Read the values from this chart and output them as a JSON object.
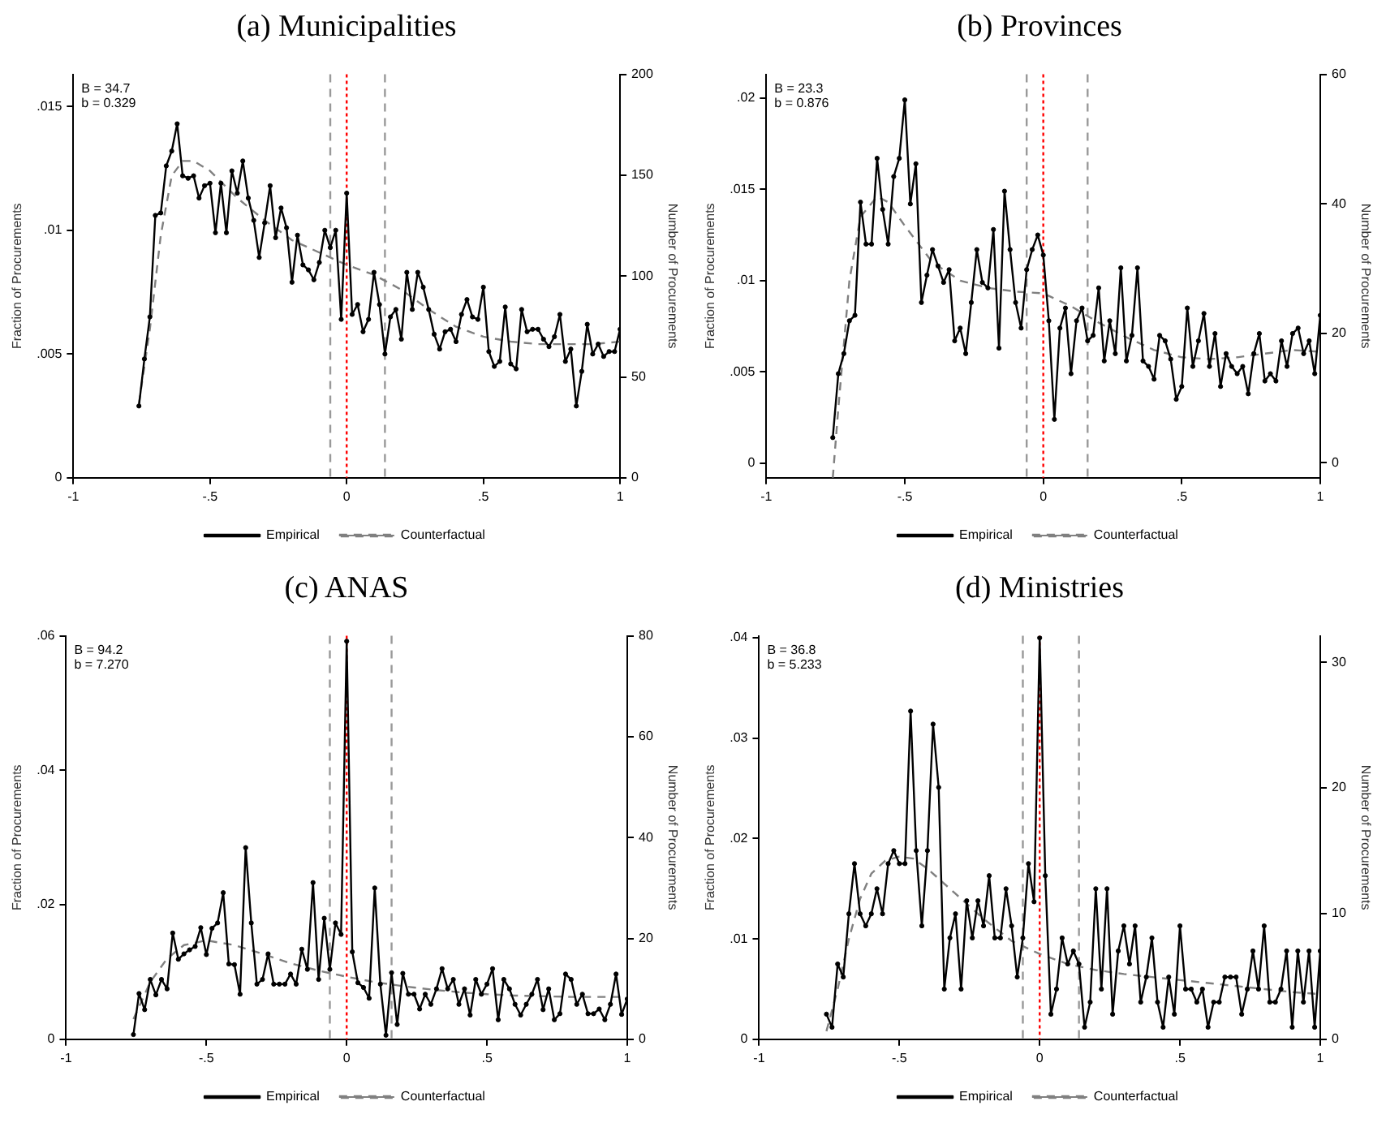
{
  "chart_data": [
    {
      "type": "line",
      "title": "(a) Municipalities",
      "ylabel": "Fraction of Procurements",
      "y2label": "Number of Procurements",
      "legend": "bottom",
      "xlim": [
        -1,
        1
      ],
      "xticks": [
        {
          "value": -1,
          "label": "-1"
        },
        {
          "value": -0.5,
          "label": "-.5"
        },
        {
          "value": 0,
          "label": "0"
        },
        {
          "value": 0.5,
          "label": ".5"
        },
        {
          "value": 1,
          "label": "1"
        }
      ],
      "ylim": [
        0,
        0.0163
      ],
      "yticks": [
        {
          "value": 0,
          "label": "0"
        },
        {
          "value": 0.005,
          "label": ".005"
        },
        {
          "value": 0.01,
          "label": ".01"
        },
        {
          "value": 0.015,
          "label": ".015"
        }
      ],
      "y2lim": [
        0,
        200
      ],
      "y2ticks": [
        0,
        50,
        100,
        150,
        200
      ],
      "annotations": [
        "B = 34.7",
        "b = 0.329"
      ],
      "ref_lines": [
        {
          "axis": "x",
          "value": -0.06,
          "color": "#999999",
          "line_style": "dashed"
        },
        {
          "axis": "x",
          "value": 0,
          "color": "#ff0000",
          "line_style": "dotted"
        },
        {
          "axis": "x",
          "value": 0.14,
          "color": "#999999",
          "line_style": "dashed"
        }
      ],
      "series": [
        {
          "name": "Empirical",
          "color": "#000000",
          "marker": "circle",
          "line_style": "solid",
          "x": [
            -0.76,
            -0.74,
            -0.72,
            -0.7,
            -0.68,
            -0.66,
            -0.64,
            -0.62,
            -0.6,
            -0.58,
            -0.56,
            -0.54,
            -0.52,
            -0.5,
            -0.48,
            -0.46,
            -0.44,
            -0.42,
            -0.4,
            -0.38,
            -0.36,
            -0.34,
            -0.32,
            -0.3,
            -0.28,
            -0.26,
            -0.24,
            -0.22,
            -0.2,
            -0.18,
            -0.16,
            -0.14,
            -0.12,
            -0.1,
            -0.08,
            -0.06,
            -0.04,
            -0.02,
            0,
            0.02,
            0.04,
            0.06,
            0.08,
            0.1,
            0.12,
            0.14,
            0.16,
            0.18,
            0.2,
            0.22,
            0.24,
            0.26,
            0.28,
            0.3,
            0.32,
            0.34,
            0.36,
            0.38,
            0.4,
            0.42,
            0.44,
            0.46,
            0.48,
            0.5,
            0.52,
            0.54,
            0.56,
            0.58,
            0.6,
            0.62,
            0.64,
            0.66,
            0.68,
            0.7,
            0.72,
            0.74,
            0.76,
            0.78,
            0.8,
            0.82,
            0.84,
            0.86,
            0.88,
            0.9,
            0.92,
            0.94,
            0.96,
            0.98,
            1
          ],
          "values": [
            0.0029,
            0.0048,
            0.0065,
            0.0106,
            0.0107,
            0.0126,
            0.0132,
            0.0143,
            0.0122,
            0.0121,
            0.0122,
            0.0113,
            0.0118,
            0.0119,
            0.0099,
            0.0119,
            0.0099,
            0.0124,
            0.0115,
            0.0128,
            0.0113,
            0.0104,
            0.0089,
            0.0103,
            0.0118,
            0.0097,
            0.0109,
            0.0101,
            0.0079,
            0.0098,
            0.0086,
            0.0084,
            0.008,
            0.0087,
            0.01,
            0.0093,
            0.01,
            0.0064,
            0.0115,
            0.0066,
            0.007,
            0.0059,
            0.0064,
            0.0083,
            0.007,
            0.005,
            0.0065,
            0.0068,
            0.0056,
            0.0083,
            0.0068,
            0.0083,
            0.0077,
            0.0068,
            0.0058,
            0.0052,
            0.0059,
            0.006,
            0.0055,
            0.0066,
            0.0072,
            0.0065,
            0.0064,
            0.0077,
            0.0051,
            0.0045,
            0.0047,
            0.0069,
            0.0046,
            0.0044,
            0.0068,
            0.0059,
            0.006,
            0.006,
            0.0056,
            0.0053,
            0.0057,
            0.0066,
            0.0047,
            0.0052,
            0.0029,
            0.0043,
            0.0062,
            0.005,
            0.0054,
            0.0049,
            0.0051,
            0.0051,
            0.006
          ]
        },
        {
          "name": "Counterfactual",
          "color": "#808080",
          "marker": "none",
          "line_style": "dashed",
          "x": [
            -0.76,
            -0.72,
            -0.68,
            -0.64,
            -0.6,
            -0.56,
            -0.5,
            -0.4,
            -0.3,
            -0.2,
            -0.1,
            0,
            0.1,
            0.2,
            0.3,
            0.4,
            0.5,
            0.6,
            0.7,
            0.8,
            0.9,
            1
          ],
          "values": [
            0.003,
            0.006,
            0.0098,
            0.0122,
            0.0128,
            0.0128,
            0.0124,
            0.0113,
            0.0104,
            0.0096,
            0.0091,
            0.0086,
            0.0082,
            0.0076,
            0.0068,
            0.0061,
            0.0057,
            0.0055,
            0.0054,
            0.0054,
            0.0054,
            0.0055
          ]
        }
      ]
    },
    {
      "type": "line",
      "title": "(b) Provinces",
      "ylabel": "Fraction of Procurements",
      "y2label": "Number of Procurements",
      "legend": "bottom",
      "xlim": [
        -1,
        1
      ],
      "xticks": [
        {
          "value": -1,
          "label": "-1"
        },
        {
          "value": -0.5,
          "label": "-.5"
        },
        {
          "value": 0,
          "label": "0"
        },
        {
          "value": 0.5,
          "label": ".5"
        },
        {
          "value": 1,
          "label": "1"
        }
      ],
      "ylim": [
        -0.0008,
        0.0213
      ],
      "yticks": [
        {
          "value": 0,
          "label": "0"
        },
        {
          "value": 0.005,
          "label": ".005"
        },
        {
          "value": 0.01,
          "label": ".01"
        },
        {
          "value": 0.015,
          "label": ".015"
        },
        {
          "value": 0.02,
          "label": ".02"
        }
      ],
      "y2lim": [
        -2.3,
        60
      ],
      "y2ticks": [
        0,
        20,
        40,
        60
      ],
      "annotations": [
        "B = 23.3",
        "b = 0.876"
      ],
      "ref_lines": [
        {
          "axis": "x",
          "value": -0.06,
          "color": "#999999",
          "line_style": "dashed"
        },
        {
          "axis": "x",
          "value": 0,
          "color": "#ff0000",
          "line_style": "dotted"
        },
        {
          "axis": "x",
          "value": 0.16,
          "color": "#999999",
          "line_style": "dashed"
        }
      ],
      "series": [
        {
          "name": "Empirical",
          "color": "#000000",
          "marker": "circle",
          "line_style": "solid",
          "x": [
            -0.76,
            -0.74,
            -0.72,
            -0.7,
            -0.68,
            -0.66,
            -0.64,
            -0.62,
            -0.6,
            -0.58,
            -0.56,
            -0.54,
            -0.52,
            -0.5,
            -0.48,
            -0.46,
            -0.44,
            -0.42,
            -0.4,
            -0.38,
            -0.36,
            -0.34,
            -0.32,
            -0.3,
            -0.28,
            -0.26,
            -0.24,
            -0.22,
            -0.2,
            -0.18,
            -0.16,
            -0.14,
            -0.12,
            -0.1,
            -0.08,
            -0.06,
            -0.04,
            -0.02,
            0,
            0.02,
            0.04,
            0.06,
            0.08,
            0.1,
            0.12,
            0.14,
            0.16,
            0.18,
            0.2,
            0.22,
            0.24,
            0.26,
            0.28,
            0.3,
            0.32,
            0.34,
            0.36,
            0.38,
            0.4,
            0.42,
            0.44,
            0.46,
            0.48,
            0.5,
            0.52,
            0.54,
            0.56,
            0.58,
            0.6,
            0.62,
            0.64,
            0.66,
            0.68,
            0.7,
            0.72,
            0.74,
            0.76,
            0.78,
            0.8,
            0.82,
            0.84,
            0.86,
            0.88,
            0.9,
            0.92,
            0.94,
            0.96,
            0.98,
            1
          ],
          "values": [
            0.0014,
            0.0049,
            0.006,
            0.0078,
            0.0081,
            0.0143,
            0.012,
            0.012,
            0.0167,
            0.0139,
            0.012,
            0.0157,
            0.0167,
            0.0199,
            0.0142,
            0.0164,
            0.0088,
            0.0103,
            0.0117,
            0.0108,
            0.0099,
            0.0106,
            0.0067,
            0.0074,
            0.006,
            0.0088,
            0.0117,
            0.0099,
            0.0096,
            0.0128,
            0.0063,
            0.0149,
            0.0117,
            0.0088,
            0.0074,
            0.0106,
            0.0117,
            0.0125,
            0.0114,
            0.0078,
            0.0024,
            0.0074,
            0.0085,
            0.0049,
            0.0078,
            0.0085,
            0.0067,
            0.007,
            0.0096,
            0.0056,
            0.0078,
            0.006,
            0.0107,
            0.0056,
            0.007,
            0.0107,
            0.0056,
            0.0053,
            0.0046,
            0.007,
            0.0067,
            0.0057,
            0.0035,
            0.0042,
            0.0085,
            0.0053,
            0.0067,
            0.0082,
            0.0053,
            0.0071,
            0.0042,
            0.006,
            0.0053,
            0.0049,
            0.0053,
            0.0038,
            0.006,
            0.0071,
            0.0045,
            0.0049,
            0.0045,
            0.0067,
            0.0053,
            0.0071,
            0.0074,
            0.006,
            0.0067,
            0.0049,
            0.0081
          ]
        },
        {
          "name": "Counterfactual",
          "color": "#808080",
          "marker": "none",
          "line_style": "dashed",
          "x": [
            -0.76,
            -0.74,
            -0.7,
            -0.66,
            -0.6,
            -0.56,
            -0.5,
            -0.4,
            -0.3,
            -0.2,
            -0.1,
            0,
            0.1,
            0.2,
            0.3,
            0.4,
            0.5,
            0.6,
            0.7,
            0.8,
            0.9,
            1
          ],
          "values": [
            -0.0008,
            0.003,
            0.01,
            0.0135,
            0.0146,
            0.0143,
            0.013,
            0.011,
            0.01,
            0.0096,
            0.0094,
            0.0093,
            0.0086,
            0.0077,
            0.0069,
            0.0062,
            0.0058,
            0.0057,
            0.0058,
            0.006,
            0.0062,
            0.0061
          ]
        }
      ]
    },
    {
      "type": "line",
      "title": "(c) ANAS",
      "ylabel": "Fraction of Procurements",
      "y2label": "Number of Procurements",
      "legend": "bottom",
      "xlim": [
        -1,
        1
      ],
      "xticks": [
        {
          "value": -1,
          "label": "-1"
        },
        {
          "value": -0.5,
          "label": "-.5"
        },
        {
          "value": 0,
          "label": "0"
        },
        {
          "value": 0.5,
          "label": ".5"
        },
        {
          "value": 1,
          "label": "1"
        }
      ],
      "ylim": [
        0,
        0.06
      ],
      "yticks": [
        {
          "value": 0,
          "label": "0"
        },
        {
          "value": 0.02,
          "label": ".02"
        },
        {
          "value": 0.04,
          "label": ".04"
        },
        {
          "value": 0.06,
          "label": ".06"
        }
      ],
      "y2lim": [
        0,
        80
      ],
      "y2ticks": [
        0,
        20,
        40,
        60,
        80
      ],
      "annotations": [
        "B = 94.2",
        "b = 7.270"
      ],
      "ref_lines": [
        {
          "axis": "x",
          "value": -0.06,
          "color": "#999999",
          "line_style": "dashed"
        },
        {
          "axis": "x",
          "value": 0,
          "color": "#ff0000",
          "line_style": "dotted"
        },
        {
          "axis": "x",
          "value": 0.16,
          "color": "#999999",
          "line_style": "dashed"
        }
      ],
      "series": [
        {
          "name": "Empirical",
          "color": "#000000",
          "marker": "circle",
          "line_style": "solid",
          "x": [
            -0.76,
            -0.74,
            -0.72,
            -0.7,
            -0.68,
            -0.66,
            -0.64,
            -0.62,
            -0.6,
            -0.58,
            -0.56,
            -0.54,
            -0.52,
            -0.5,
            -0.48,
            -0.46,
            -0.44,
            -0.42,
            -0.4,
            -0.38,
            -0.36,
            -0.34,
            -0.32,
            -0.3,
            -0.28,
            -0.26,
            -0.24,
            -0.22,
            -0.2,
            -0.18,
            -0.16,
            -0.14,
            -0.12,
            -0.1,
            -0.08,
            -0.06,
            -0.04,
            -0.02,
            0,
            0.02,
            0.04,
            0.06,
            0.08,
            0.1,
            0.12,
            0.14,
            0.16,
            0.18,
            0.2,
            0.22,
            0.24,
            0.26,
            0.28,
            0.3,
            0.32,
            0.34,
            0.36,
            0.38,
            0.4,
            0.42,
            0.44,
            0.46,
            0.48,
            0.5,
            0.52,
            0.54,
            0.56,
            0.58,
            0.6,
            0.62,
            0.64,
            0.66,
            0.68,
            0.7,
            0.72,
            0.74,
            0.76,
            0.78,
            0.8,
            0.82,
            0.84,
            0.86,
            0.88,
            0.9,
            0.92,
            0.94,
            0.96,
            0.98,
            1
          ],
          "values": [
            0.0007,
            0.0068,
            0.0044,
            0.0089,
            0.0066,
            0.0089,
            0.0075,
            0.0158,
            0.0119,
            0.0127,
            0.0133,
            0.0138,
            0.0166,
            0.0126,
            0.0165,
            0.0173,
            0.0218,
            0.0112,
            0.0111,
            0.0067,
            0.0285,
            0.0173,
            0.0082,
            0.0089,
            0.0127,
            0.0082,
            0.0082,
            0.0082,
            0.0097,
            0.0082,
            0.0134,
            0.0104,
            0.0233,
            0.0089,
            0.018,
            0.0104,
            0.0173,
            0.0156,
            0.0592,
            0.013,
            0.0084,
            0.0077,
            0.0061,
            0.0225,
            0.0082,
            0.0006,
            0.0099,
            0.0022,
            0.0098,
            0.0067,
            0.0067,
            0.0045,
            0.0067,
            0.0052,
            0.0075,
            0.0105,
            0.0075,
            0.0089,
            0.0052,
            0.0075,
            0.0036,
            0.0089,
            0.0067,
            0.0082,
            0.0105,
            0.0029,
            0.0089,
            0.0075,
            0.0052,
            0.0036,
            0.0052,
            0.0067,
            0.0089,
            0.0044,
            0.0075,
            0.0029,
            0.0038,
            0.0097,
            0.0089,
            0.0052,
            0.0067,
            0.0038,
            0.0038,
            0.0045,
            0.0029,
            0.0052,
            0.0097,
            0.0037,
            0.006
          ]
        },
        {
          "name": "Counterfactual",
          "color": "#808080",
          "marker": "none",
          "line_style": "dashed",
          "x": [
            -0.76,
            -0.7,
            -0.64,
            -0.58,
            -0.5,
            -0.4,
            -0.3,
            -0.2,
            -0.1,
            0,
            0.1,
            0.2,
            0.3,
            0.4,
            0.5,
            0.6,
            0.7,
            0.8,
            0.9,
            1
          ],
          "values": [
            0.003,
            0.0085,
            0.012,
            0.014,
            0.0147,
            0.014,
            0.0127,
            0.0113,
            0.0102,
            0.0093,
            0.0085,
            0.0079,
            0.0074,
            0.007,
            0.0067,
            0.0065,
            0.0064,
            0.0063,
            0.0063,
            0.0063
          ]
        }
      ]
    },
    {
      "type": "line",
      "title": "(d) Ministries",
      "ylabel": "Fraction of Procurements",
      "y2label": "Number of Procurements",
      "legend": "bottom",
      "xlim": [
        -1,
        1
      ],
      "xticks": [
        {
          "value": -1,
          "label": "-1"
        },
        {
          "value": -0.5,
          "label": "-.5"
        },
        {
          "value": 0,
          "label": "0"
        },
        {
          "value": 0.5,
          "label": ".5"
        },
        {
          "value": 1,
          "label": "1"
        }
      ],
      "ylim": [
        0,
        0.0402
      ],
      "yticks": [
        {
          "value": 0,
          "label": "0"
        },
        {
          "value": 0.01,
          "label": ".01"
        },
        {
          "value": 0.02,
          "label": ".02"
        },
        {
          "value": 0.03,
          "label": ".03"
        },
        {
          "value": 0.04,
          "label": ".04"
        }
      ],
      "y2lim": [
        0,
        32.1
      ],
      "y2ticks": [
        0,
        10,
        20,
        30
      ],
      "annotations": [
        "B = 36.8",
        "b = 5.233"
      ],
      "ref_lines": [
        {
          "axis": "x",
          "value": -0.06,
          "color": "#999999",
          "line_style": "dashed"
        },
        {
          "axis": "x",
          "value": 0,
          "color": "#ff0000",
          "line_style": "dotted"
        },
        {
          "axis": "x",
          "value": 0.14,
          "color": "#999999",
          "line_style": "dashed"
        }
      ],
      "series": [
        {
          "name": "Empirical",
          "color": "#000000",
          "marker": "circle",
          "line_style": "solid",
          "x": [
            -0.76,
            -0.74,
            -0.72,
            -0.7,
            -0.68,
            -0.66,
            -0.64,
            -0.62,
            -0.6,
            -0.58,
            -0.56,
            -0.54,
            -0.52,
            -0.5,
            -0.48,
            -0.46,
            -0.44,
            -0.42,
            -0.4,
            -0.38,
            -0.36,
            -0.34,
            -0.32,
            -0.3,
            -0.28,
            -0.26,
            -0.24,
            -0.22,
            -0.2,
            -0.18,
            -0.16,
            -0.14,
            -0.12,
            -0.1,
            -0.08,
            -0.06,
            -0.04,
            -0.02,
            0,
            0.02,
            0.04,
            0.06,
            0.08,
            0.1,
            0.12,
            0.14,
            0.16,
            0.18,
            0.2,
            0.22,
            0.24,
            0.26,
            0.28,
            0.3,
            0.32,
            0.34,
            0.36,
            0.38,
            0.4,
            0.42,
            0.44,
            0.46,
            0.48,
            0.5,
            0.52,
            0.54,
            0.56,
            0.58,
            0.6,
            0.62,
            0.64,
            0.66,
            0.68,
            0.7,
            0.72,
            0.74,
            0.76,
            0.78,
            0.8,
            0.82,
            0.84,
            0.86,
            0.88,
            0.9,
            0.92,
            0.94,
            0.96,
            0.98,
            1
          ],
          "values": [
            0.0025,
            0.0012,
            0.0075,
            0.0062,
            0.0125,
            0.0175,
            0.0125,
            0.0113,
            0.0125,
            0.015,
            0.0125,
            0.0175,
            0.0188,
            0.0175,
            0.0175,
            0.0327,
            0.0188,
            0.0113,
            0.0188,
            0.0314,
            0.0251,
            0.005,
            0.0101,
            0.0125,
            0.005,
            0.0138,
            0.0101,
            0.0138,
            0.0113,
            0.0163,
            0.0101,
            0.0101,
            0.015,
            0.0113,
            0.0062,
            0.0101,
            0.0175,
            0.0137,
            0.04,
            0.0163,
            0.0025,
            0.005,
            0.0101,
            0.0075,
            0.0088,
            0.0075,
            0.0012,
            0.0037,
            0.015,
            0.005,
            0.015,
            0.0025,
            0.0088,
            0.0113,
            0.0075,
            0.0113,
            0.0037,
            0.0062,
            0.0101,
            0.0037,
            0.0012,
            0.0062,
            0.0025,
            0.0113,
            0.005,
            0.005,
            0.0037,
            0.005,
            0.0012,
            0.0037,
            0.0037,
            0.0062,
            0.0062,
            0.0062,
            0.0025,
            0.005,
            0.0088,
            0.005,
            0.0113,
            0.0037,
            0.0037,
            0.005,
            0.0088,
            0.0012,
            0.0088,
            0.0037,
            0.0088,
            0.0012,
            0.0088
          ]
        },
        {
          "name": "Counterfactual",
          "color": "#808080",
          "marker": "none",
          "line_style": "dashed",
          "x": [
            -0.76,
            -0.72,
            -0.68,
            -0.64,
            -0.6,
            -0.55,
            -0.5,
            -0.45,
            -0.4,
            -0.3,
            -0.2,
            -0.1,
            0,
            0.1,
            0.2,
            0.3,
            0.4,
            0.5,
            0.6,
            0.7,
            0.8,
            0.9,
            1
          ],
          "values": [
            0.0008,
            0.005,
            0.01,
            0.014,
            0.0165,
            0.0178,
            0.0182,
            0.018,
            0.017,
            0.0145,
            0.012,
            0.0098,
            0.0085,
            0.0075,
            0.0069,
            0.0065,
            0.0062,
            0.0059,
            0.0056,
            0.0053,
            0.005,
            0.0047,
            0.0045
          ]
        }
      ]
    }
  ]
}
